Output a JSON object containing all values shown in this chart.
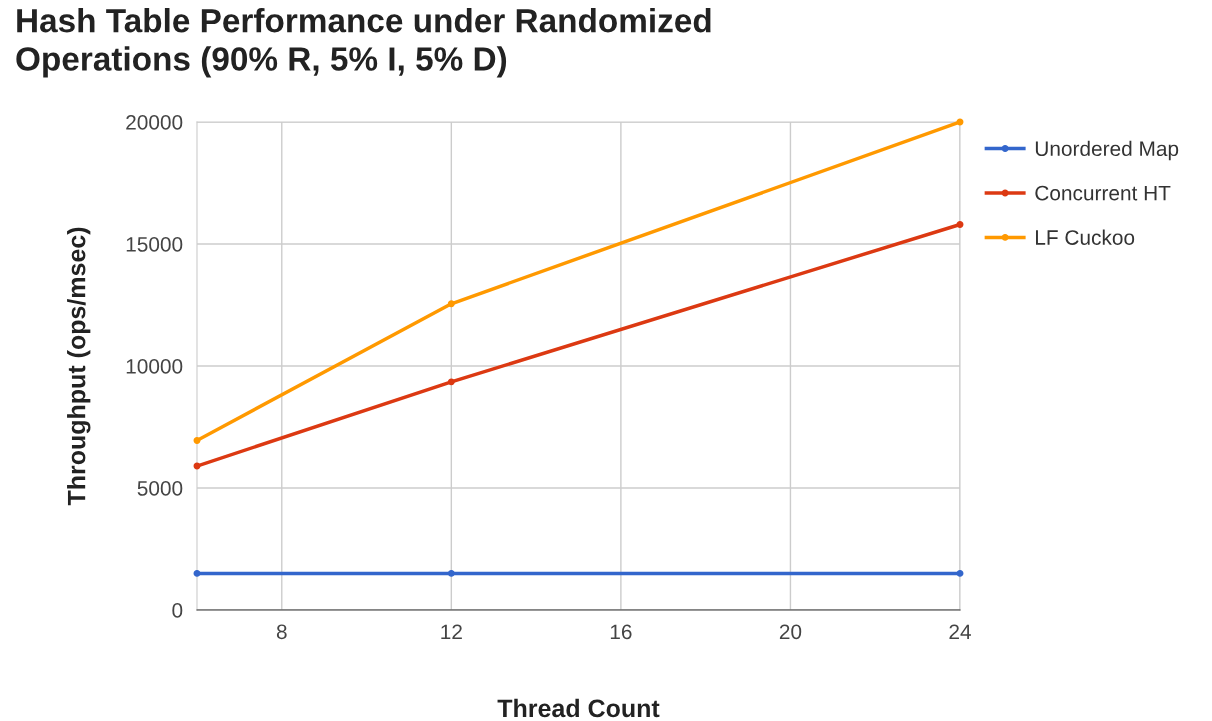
{
  "chart_data": {
    "type": "line",
    "title": "Hash Table Performance under Randomized\nOperations (90% R, 5% I, 5% D)",
    "xlabel": "Thread Count",
    "ylabel": "Throughput (ops/msec)",
    "x": [
      6,
      12,
      24
    ],
    "series": [
      {
        "name": "Unordered Map",
        "color": "#3366cc",
        "values": [
          1500,
          1500,
          1500
        ]
      },
      {
        "name": "Concurrent HT",
        "color": "#dc3912",
        "values": [
          5900,
          9350,
          15800
        ]
      },
      {
        "name": "LF Cuckoo",
        "color": "#ff9900",
        "values": [
          6950,
          12550,
          20000
        ]
      }
    ],
    "xlim": [
      6,
      24
    ],
    "xticks": [
      8,
      12,
      16,
      20,
      24
    ],
    "ylim": [
      0,
      20000
    ],
    "yticks": [
      0,
      5000,
      10000,
      15000,
      20000
    ],
    "grid": true,
    "legend": "right",
    "marker": "circle",
    "line_style": "solid"
  }
}
